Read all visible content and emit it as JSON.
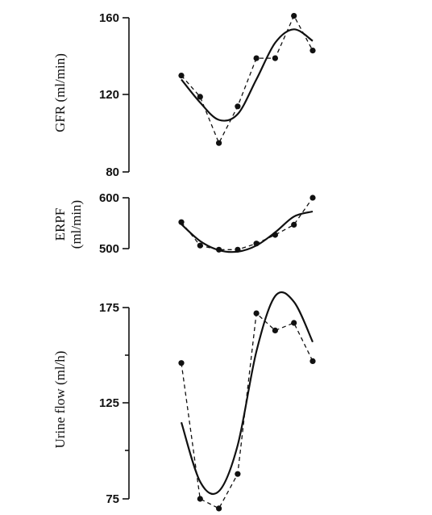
{
  "chart_data": [
    {
      "type": "line",
      "ylabel": "GFR (ml/min)",
      "ylim": [
        80,
        160
      ],
      "yticks": [
        80,
        120,
        160
      ],
      "x": [
        1,
        2,
        3,
        4,
        5,
        6,
        7,
        8
      ],
      "series": [
        {
          "style": "dashed-with-points",
          "values": [
            130,
            119,
            95,
            114,
            139,
            139,
            161,
            143
          ]
        },
        {
          "style": "solid-fit",
          "values": [
            128,
            116,
            107,
            110,
            128,
            147,
            154,
            148
          ]
        }
      ]
    },
    {
      "type": "line",
      "ylabel": "ERPF",
      "ylabel2": "(ml/min)",
      "ylim": [
        500,
        600
      ],
      "yticks": [
        500,
        600
      ],
      "x": [
        1,
        2,
        3,
        4,
        5,
        6,
        7,
        8
      ],
      "series": [
        {
          "style": "dashed-with-points",
          "values": [
            552,
            506,
            498,
            498,
            510,
            527,
            547,
            600
          ]
        },
        {
          "style": "solid-fit",
          "values": [
            548,
            515,
            497,
            494,
            506,
            532,
            563,
            573
          ]
        }
      ]
    },
    {
      "type": "line",
      "ylabel": "Urine flow (ml/h)",
      "ylim": [
        75,
        175
      ],
      "yticks": [
        75,
        125,
        175
      ],
      "x": [
        1,
        2,
        3,
        4,
        5,
        6,
        7,
        8
      ],
      "series": [
        {
          "style": "dashed-with-points",
          "values": [
            146,
            75,
            70,
            88,
            172,
            163,
            167,
            147
          ]
        },
        {
          "style": "solid-fit",
          "values": [
            115,
            84,
            79,
            103,
            152,
            181,
            178,
            157
          ]
        }
      ]
    }
  ]
}
